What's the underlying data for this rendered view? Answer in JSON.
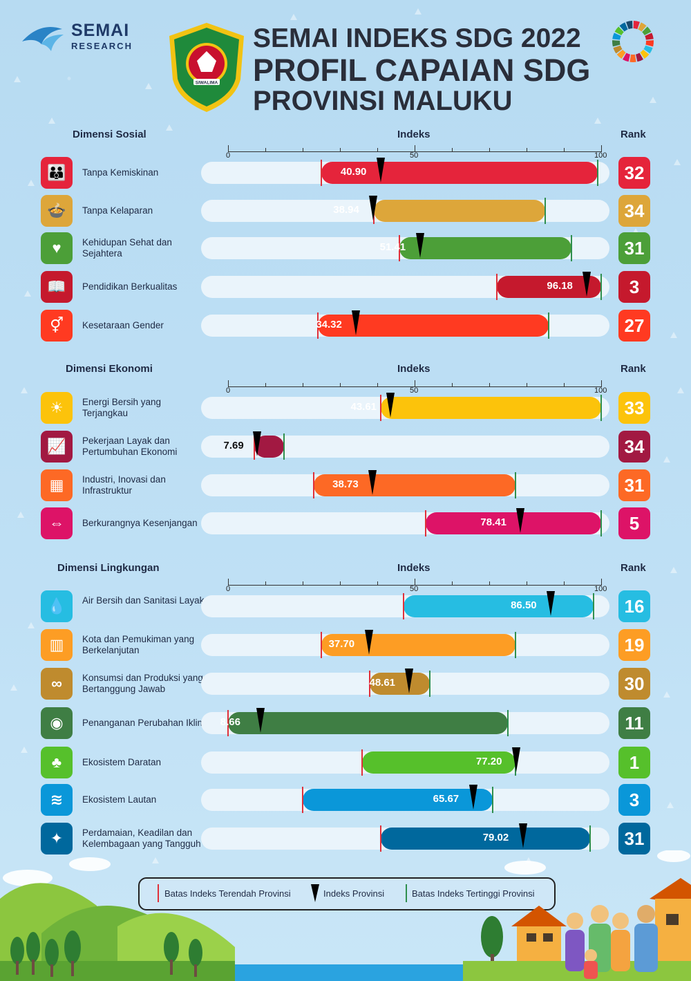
{
  "brand": {
    "name": "SEMAI",
    "sub": "RESEARCH"
  },
  "emblem_text": "SIWALIMA",
  "titles": [
    "SEMAI INDEKS SDG 2022",
    "PROFIL CAPAIAN SDG",
    "PROVINSI MALUKU"
  ],
  "headers": {
    "index": "Indeks",
    "rank": "Rank"
  },
  "axis_ticks": [
    "0",
    "50",
    "100"
  ],
  "legend": {
    "min": "Batas Indeks Terendah Provinsi",
    "pin": "Indeks Provinsi",
    "max": "Batas Indeks Tertinggi Provinsi"
  },
  "colors": {
    "min_mark": "#e0303a",
    "max_mark": "#2f8f4e",
    "track": "#eaf4fb"
  },
  "chart_data": [
    {
      "type": "bar",
      "title": "Dimensi Sosial",
      "xlim": [
        0,
        100
      ],
      "rows": [
        {
          "label": "Tanpa Kemiskinan",
          "value": 40.9,
          "value_label": "40.90",
          "min": 25,
          "max": 99,
          "rank": "32",
          "color": "#e5243b",
          "icon": "people-icon"
        },
        {
          "label": "Tanpa Kelaparan",
          "value": 38.94,
          "value_label": "38.94",
          "min": 39,
          "max": 85,
          "rank": "34",
          "color": "#dda63a",
          "icon": "bowl-icon"
        },
        {
          "label": "Kehidupan Sehat dan Sejahtera",
          "value": 51.41,
          "value_label": "51.41",
          "min": 46,
          "max": 92,
          "rank": "31",
          "color": "#4c9f38",
          "icon": "heartbeat-icon"
        },
        {
          "label": "Pendidikan Berkualitas",
          "value": 96.18,
          "value_label": "96.18",
          "min": 72,
          "max": 100,
          "rank": "3",
          "color": "#c5192d",
          "icon": "book-icon"
        },
        {
          "label": "Kesetaraan Gender",
          "value": 34.32,
          "value_label": "34.32",
          "min": 24,
          "max": 86,
          "rank": "27",
          "color": "#ff3a21",
          "icon": "gender-icon"
        }
      ]
    },
    {
      "type": "bar",
      "title": "Dimensi Ekonomi",
      "xlim": [
        0,
        100
      ],
      "rows": [
        {
          "label": "Energi Bersih yang Terjangkau",
          "value": 43.61,
          "value_label": "43.61",
          "min": 41,
          "max": 100,
          "rank": "33",
          "color": "#fcc30b",
          "icon": "sun-icon"
        },
        {
          "label": "Pekerjaan Layak dan Pertumbuhan Ekonomi",
          "value": 7.69,
          "value_label": "7.69",
          "min": 7,
          "max": 15,
          "rank": "34",
          "color": "#a21942",
          "icon": "growth-chart-icon"
        },
        {
          "label": "Industri, Inovasi dan Infrastruktur",
          "value": 38.73,
          "value_label": "38.73",
          "min": 23,
          "max": 77,
          "rank": "31",
          "color": "#fd6925",
          "icon": "cubes-icon"
        },
        {
          "label": "Berkurangnya Kesenjangan",
          "value": 78.41,
          "value_label": "78.41",
          "min": 53,
          "max": 100,
          "rank": "5",
          "color": "#dd1367",
          "icon": "arrows-icon"
        }
      ]
    },
    {
      "type": "bar",
      "title": "Dimensi Lingkungan",
      "xlim": [
        0,
        100
      ],
      "rows": [
        {
          "label": "Air Bersih dan Sanitasi Layak",
          "value": 86.5,
          "value_label": "86.50",
          "min": 47,
          "max": 98,
          "rank": "16",
          "color": "#26bde2",
          "icon": "water-drop-icon"
        },
        {
          "label": "Kota dan Pemukiman yang Berkelanjutan",
          "value": 37.7,
          "value_label": "37.70",
          "min": 25,
          "max": 77,
          "rank": "19",
          "color": "#fd9d24",
          "icon": "city-icon"
        },
        {
          "label": "Konsumsi dan Produksi yang Bertanggung Jawab",
          "value": 48.61,
          "value_label": "48.61",
          "min": 38,
          "max": 54,
          "rank": "30",
          "color": "#bf8b2e",
          "icon": "infinity-icon"
        },
        {
          "label": "Penanganan Perubahan Iklim",
          "value": 8.66,
          "value_label": "8.66",
          "min": 0,
          "max": 75,
          "rank": "11",
          "color": "#3f7e44",
          "icon": "eye-icon"
        },
        {
          "label": "Ekosistem Daratan",
          "value": 77.2,
          "value_label": "77.20",
          "min": 36,
          "max": 77,
          "rank": "1",
          "color": "#56c02b",
          "icon": "tree-icon"
        },
        {
          "label": "Ekosistem Lautan",
          "value": 65.67,
          "value_label": "65.67",
          "min": 20,
          "max": 71,
          "rank": "3",
          "color": "#0a97d9",
          "icon": "fish-icon"
        },
        {
          "label": "Perdamaian, Keadilan dan Kelembagaan yang Tangguh",
          "value": 79.02,
          "value_label": "79.02",
          "min": 41,
          "max": 97,
          "rank": "31",
          "color": "#00689d",
          "icon": "dove-icon"
        }
      ]
    }
  ]
}
